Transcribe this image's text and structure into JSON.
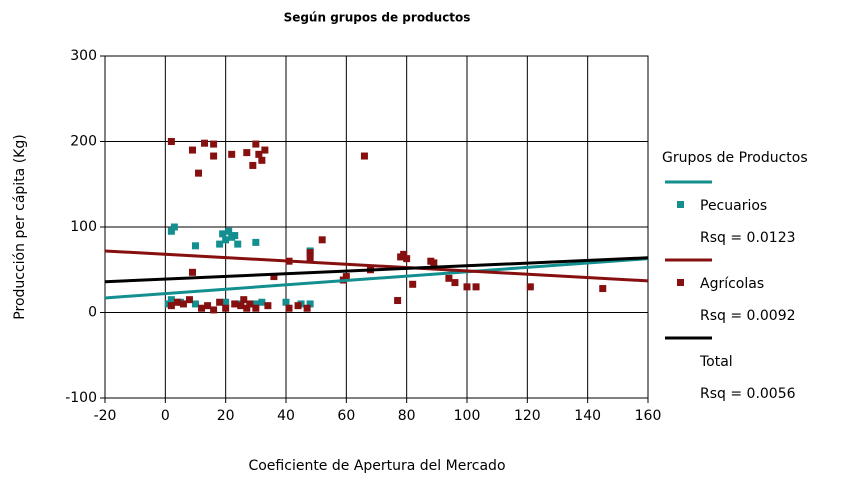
{
  "chart_data": {
    "type": "scatter",
    "title": "Según grupos de productos",
    "xlabel": "Coeficiente de Apertura del Mercado",
    "ylabel": "Producción per cápita (Kg)",
    "xlim": [
      -20,
      160
    ],
    "ylim": [
      -100,
      300
    ],
    "xticks": [
      -20,
      0,
      20,
      40,
      60,
      80,
      100,
      120,
      140,
      160
    ],
    "yticks": [
      -100,
      0,
      100,
      200,
      300
    ],
    "grid": true,
    "legend_title": "Grupos de Productos",
    "legend_position": "right",
    "series": [
      {
        "name": "Pecuarios",
        "color": "#138f8f",
        "marker": "square",
        "x": [
          2,
          3,
          10,
          19,
          20,
          21,
          22,
          23,
          24,
          30,
          48,
          1,
          5,
          10,
          20,
          30,
          32,
          40,
          45,
          48,
          18,
          25,
          2
        ],
        "values": [
          95,
          100,
          78,
          92,
          85,
          95,
          88,
          90,
          80,
          82,
          72,
          10,
          12,
          10,
          12,
          10,
          12,
          12,
          10,
          10,
          80,
          10,
          15
        ],
        "fit": {
          "x": [
            -20,
            160
          ],
          "values": [
            17,
            63
          ]
        },
        "legend_note": "Rsq = 0.0123"
      },
      {
        "name": "Agrícolas",
        "color": "#860f0f",
        "marker": "square",
        "x": [
          2,
          9,
          13,
          16,
          11,
          16,
          22,
          27,
          30,
          31,
          29,
          32,
          33,
          66,
          52,
          48,
          9,
          36,
          41,
          48,
          60,
          59,
          78,
          79,
          80,
          82,
          88,
          89,
          94,
          96,
          100,
          103,
          121,
          145,
          77,
          68,
          2,
          4,
          6,
          8,
          12,
          14,
          16,
          18,
          20,
          23,
          25,
          26,
          27,
          28,
          30,
          34,
          41,
          44,
          47
        ],
        "values": [
          200,
          190,
          198,
          197,
          163,
          183,
          185,
          187,
          197,
          185,
          172,
          178,
          190,
          183,
          85,
          70,
          47,
          42,
          60,
          63,
          42,
          38,
          65,
          68,
          63,
          33,
          60,
          58,
          40,
          35,
          30,
          30,
          30,
          28,
          14,
          50,
          8,
          12,
          10,
          15,
          5,
          8,
          3,
          12,
          5,
          10,
          8,
          15,
          5,
          10,
          5,
          8,
          5,
          8,
          5
        ],
        "fit": {
          "x": [
            -20,
            160
          ],
          "values": [
            72,
            37
          ]
        },
        "legend_note": "Rsq = 0.0092"
      },
      {
        "name": "Total",
        "color": "#000000",
        "fit": {
          "x": [
            -20,
            160
          ],
          "values": [
            36,
            64
          ]
        },
        "legend_note": "Rsq = 0.0056"
      }
    ]
  }
}
